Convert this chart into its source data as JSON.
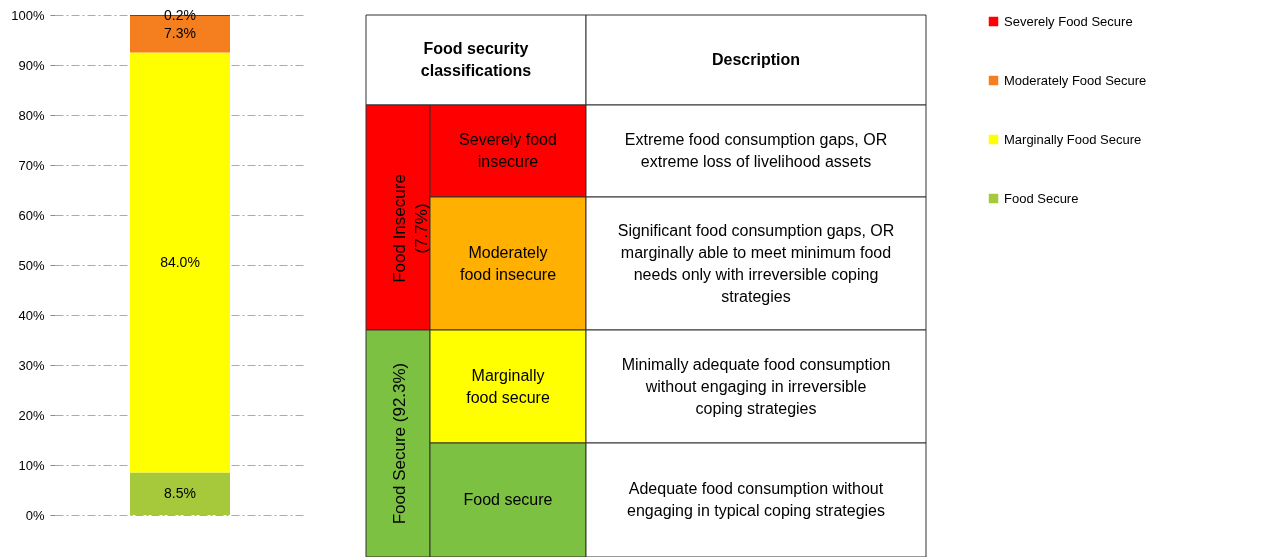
{
  "chart_data": [
    {
      "type": "bar",
      "stacked": true,
      "categories": [
        null
      ],
      "series": [
        {
          "name": "Food Secure",
          "color": "#a5c93b",
          "values": [
            8.5
          ],
          "value_labels": [
            "8.5%"
          ]
        },
        {
          "name": "Marginally Food Secure",
          "color": "#ffff00",
          "values": [
            84.0
          ],
          "value_labels": [
            "84.0%"
          ]
        },
        {
          "name": "Moderately Food Secure",
          "color": "#f57f1e",
          "values": [
            7.3
          ],
          "value_labels": [
            "7.3%"
          ]
        },
        {
          "name": "Severely Food Secure",
          "color": "#ff0000",
          "values": [
            0.2
          ],
          "value_labels": [
            "0.2%"
          ]
        }
      ],
      "ylim": [
        0,
        100
      ],
      "yticks": [
        {
          "value": 0,
          "label": "0%"
        },
        {
          "value": 10,
          "label": "10%"
        },
        {
          "value": 20,
          "label": "20%"
        },
        {
          "value": 30,
          "label": "30%"
        },
        {
          "value": 40,
          "label": "40%"
        },
        {
          "value": 50,
          "label": "50%"
        },
        {
          "value": 60,
          "label": "60%"
        },
        {
          "value": 70,
          "label": "70%"
        },
        {
          "value": 80,
          "label": "80%"
        },
        {
          "value": 90,
          "label": "90%"
        },
        {
          "value": 100,
          "label": "100%"
        }
      ],
      "grid": "y",
      "legend": "right"
    },
    {
      "type": "other",
      "annotations": [
        "Food security classifications",
        "Description",
        "Food Insecure (7.7%)",
        "Food Secure (92.3%)",
        "Severely food insecure",
        "Extreme food consumption gaps, OR extreme loss of livelihood assets",
        "Moderately food insecure",
        "Significant food consumption gaps, OR marginally able to meet minimum food needs only with irreversible coping strategies",
        "Marginally food secure",
        "Minimally adequate food consumption without engaging in irreversible coping strategies",
        "Food secure",
        "Adequate food consumption without engaging in typical coping strategies"
      ],
      "colors": [
        "#ff0000",
        "#7dc142",
        "#ff0000",
        "#ffb000",
        "#ffff00",
        "#7dc142"
      ]
    }
  ]
}
